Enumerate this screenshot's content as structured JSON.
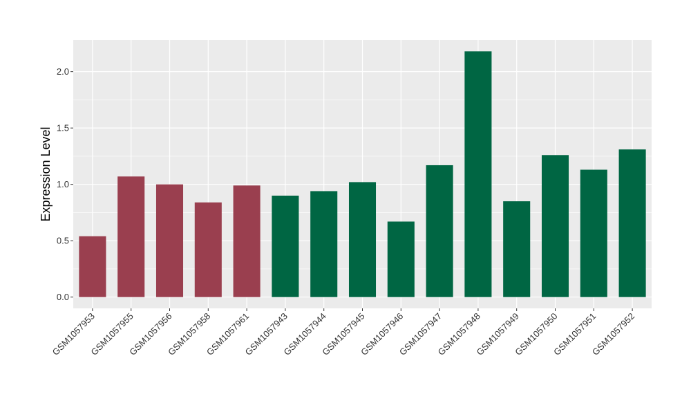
{
  "chart_data": {
    "type": "bar",
    "title": "",
    "xlabel": "",
    "ylabel": "Expression Level",
    "ylim": [
      -0.1,
      2.28
    ],
    "yticks": [
      0.0,
      0.5,
      1.0,
      1.5,
      2.0
    ],
    "ytick_labels": [
      "0.0",
      "0.5",
      "1.0",
      "1.5",
      "2.0"
    ],
    "grid": true,
    "legend": "none",
    "categories": [
      "GSM1057953",
      "GSM1057955",
      "GSM1057956",
      "GSM1057958",
      "GSM1057961",
      "GSM1057943",
      "GSM1057944",
      "GSM1057945",
      "GSM1057946",
      "GSM1057947",
      "GSM1057948",
      "GSM1057949",
      "GSM1057950",
      "GSM1057951",
      "GSM1057952"
    ],
    "values": [
      0.54,
      1.07,
      1.0,
      0.84,
      0.99,
      0.9,
      0.94,
      1.02,
      0.67,
      1.17,
      2.18,
      0.85,
      1.26,
      1.13,
      1.31
    ],
    "groups": [
      0,
      0,
      0,
      0,
      0,
      1,
      1,
      1,
      1,
      1,
      1,
      1,
      1,
      1,
      1
    ],
    "group_colors": [
      "#9a3f4f",
      "#006643"
    ],
    "panel_background": "#ebebeb",
    "grid_color": "#ffffff"
  }
}
